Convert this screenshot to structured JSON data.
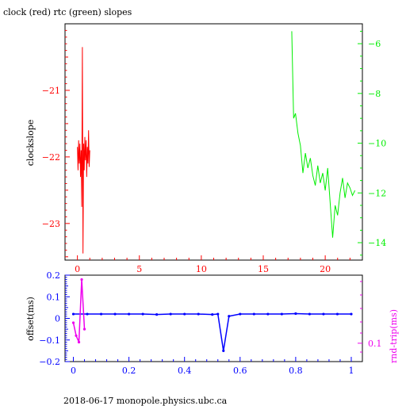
{
  "title": "clock (red) rtc (green) slopes",
  "footer": "2018-06-17  monopole.physics.ubc.ca",
  "colors": {
    "clock": "#ff0000",
    "rtc": "#00ee00",
    "offset": "#0000ff",
    "rndtrip": "#ee00ee",
    "frame": "#000000"
  },
  "chart_data": [
    {
      "type": "line",
      "title": "clock (red) rtc (green) slopes",
      "ylabel": "clockslope",
      "x_ticks": [
        "0",
        "5",
        "10",
        "15",
        "20"
      ],
      "xlim": [
        -1,
        23
      ],
      "y_left_ticks": [
        "-21",
        "-22",
        "-23"
      ],
      "ylim_left": [
        -23.55,
        -20.0
      ],
      "y_right_ticks": [
        "-6",
        "-8",
        "-10",
        "-12",
        "-14"
      ],
      "ylim_right": [
        -14.7,
        -5.2
      ],
      "series": [
        {
          "name": "clock",
          "axis": "left",
          "x": [
            0.0,
            0.05,
            0.1,
            0.15,
            0.2,
            0.25,
            0.3,
            0.35,
            0.4,
            0.45,
            0.5,
            0.55,
            0.6,
            0.65,
            0.7,
            0.75,
            0.8,
            0.85,
            0.9,
            0.95,
            1.0
          ],
          "y": [
            -21.85,
            -22.2,
            -21.75,
            -22.1,
            -21.8,
            -22.3,
            -21.9,
            -22.75,
            -20.35,
            -23.45,
            -21.8,
            -22.2,
            -21.7,
            -22.05,
            -21.75,
            -22.3,
            -21.85,
            -22.1,
            -21.6,
            -22.15,
            -21.9
          ]
        },
        {
          "name": "rtc",
          "axis": "right",
          "x": [
            17.3,
            17.45,
            17.6,
            17.8,
            18.0,
            18.2,
            18.4,
            18.6,
            18.8,
            19.0,
            19.2,
            19.4,
            19.6,
            19.8,
            20.0,
            20.2,
            20.4,
            20.6,
            20.8,
            21.0,
            21.2,
            21.4,
            21.6,
            21.8,
            22.0,
            22.2,
            22.4
          ],
          "y": [
            -5.5,
            -9.0,
            -8.8,
            -9.6,
            -10.1,
            -11.2,
            -10.4,
            -11.0,
            -10.6,
            -11.3,
            -11.7,
            -10.9,
            -11.6,
            -11.2,
            -11.9,
            -11.0,
            -12.4,
            -13.8,
            -12.5,
            -12.9,
            -12.0,
            -11.4,
            -12.2,
            -11.6,
            -11.8,
            -12.1,
            -11.9
          ]
        }
      ]
    },
    {
      "type": "scatter",
      "ylabel_left": "offset(ms)",
      "ylabel_right": "rnd-trip(ms)",
      "x_ticks": [
        "0",
        "0.2",
        "0.4",
        "0.6",
        "0.8",
        "1"
      ],
      "xlim": [
        -0.03,
        1.04
      ],
      "y_left_ticks": [
        "0.2",
        "0.1",
        "0",
        "-0.1",
        "-0.2"
      ],
      "ylim_left": [
        -0.2,
        0.2
      ],
      "y_right_ticks": [
        "0.1"
      ],
      "series": [
        {
          "name": "offset",
          "x": [
            0.0,
            0.05,
            0.1,
            0.15,
            0.2,
            0.25,
            0.3,
            0.35,
            0.4,
            0.45,
            0.5,
            0.52,
            0.54,
            0.56,
            0.6,
            0.65,
            0.7,
            0.75,
            0.8,
            0.85,
            0.9,
            0.95,
            1.0
          ],
          "y": [
            0.02,
            0.02,
            0.02,
            0.02,
            0.02,
            0.02,
            0.018,
            0.02,
            0.02,
            0.02,
            0.018,
            0.02,
            -0.15,
            0.01,
            0.02,
            0.02,
            0.02,
            0.02,
            0.022,
            0.02,
            0.02,
            0.02,
            0.02
          ]
        },
        {
          "name": "rnd-trip",
          "x": [
            0.0,
            0.01,
            0.02,
            0.03,
            0.04
          ],
          "y": [
            -0.02,
            -0.08,
            -0.11,
            0.18,
            -0.05
          ]
        }
      ]
    }
  ]
}
